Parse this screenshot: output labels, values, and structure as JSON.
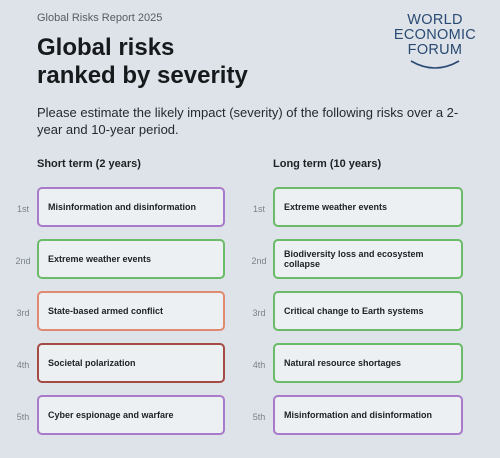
{
  "report_tag": "Global Risks Report 2025",
  "title_line1": "Global risks",
  "title_line2": "ranked by severity",
  "logo": {
    "line1": "WORLD",
    "line2": "ECONOMIC",
    "line3": "FORUM",
    "icon": "arc-swoosh-icon"
  },
  "intro": "Please estimate the likely impact (severity) of the following risks over a 2-year and 10-year period.",
  "short_term": {
    "heading": "Short term (2 years)",
    "items": [
      {
        "rank": "1st",
        "label": "Misinformation and disinformation",
        "color": "#a87ac9"
      },
      {
        "rank": "2nd",
        "label": "Extreme weather events",
        "color": "#6cbb6a"
      },
      {
        "rank": "3rd",
        "label": "State-based armed conflict",
        "color": "#e08a72"
      },
      {
        "rank": "4th",
        "label": "Societal polarization",
        "color": "#a44a45"
      },
      {
        "rank": "5th",
        "label": "Cyber espionage and warfare",
        "color": "#a87ac9"
      }
    ]
  },
  "long_term": {
    "heading": "Long term (10 years)",
    "items": [
      {
        "rank": "1st",
        "label": "Extreme weather events",
        "color": "#6cbb6a"
      },
      {
        "rank": "2nd",
        "label": "Biodiversity loss and ecosystem collapse",
        "color": "#6cbb6a"
      },
      {
        "rank": "3rd",
        "label": "Critical change to Earth systems",
        "color": "#6cbb6a"
      },
      {
        "rank": "4th",
        "label": "Natural resource shortages",
        "color": "#6cbb6a"
      },
      {
        "rank": "5th",
        "label": "Misinformation and disinformation",
        "color": "#a87ac9"
      }
    ]
  }
}
